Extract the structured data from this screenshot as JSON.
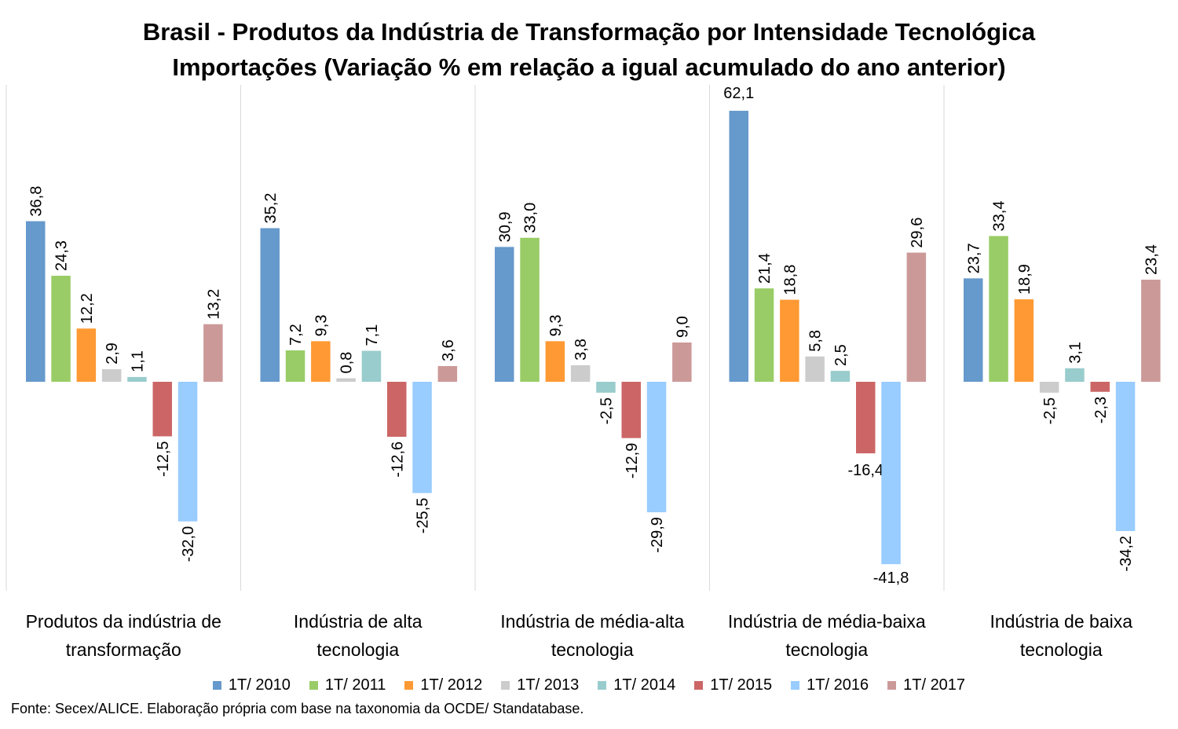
{
  "chart_data": {
    "type": "bar",
    "title": "Brasil - Produtos da Indústria de Transformação por Intensidade Tecnológica",
    "subtitle": "Importações (Variação % em relação a igual acumulado do ano anterior)",
    "categories": [
      "Produtos da indústria de transformação",
      "Indústria de alta tecnologia",
      "Indústria de média-alta tecnologia",
      "Indústria de média-baixa tecnologia",
      "Indústria de baixa tecnologia"
    ],
    "category_lines": [
      [
        "Produtos da indústria de",
        "transformação"
      ],
      [
        "Indústria de alta",
        "tecnologia"
      ],
      [
        "Indústria de média-alta",
        "tecnologia"
      ],
      [
        "Indústria de média-baixa",
        "tecnologia"
      ],
      [
        "Indústria de baixa",
        "tecnologia"
      ]
    ],
    "series": [
      {
        "name": "1T/ 2010",
        "color": "#6699CC",
        "values": [
          36.8,
          35.2,
          30.9,
          62.1,
          23.7
        ],
        "labels": [
          "36,8",
          "35,2",
          "30,9",
          "62,1",
          "23,7"
        ]
      },
      {
        "name": "1T/ 2011",
        "color": "#99CC66",
        "values": [
          24.3,
          7.2,
          33.0,
          21.4,
          33.4
        ],
        "labels": [
          "24,3",
          "7,2",
          "33,0",
          "21,4",
          "33,4"
        ]
      },
      {
        "name": "1T/ 2012",
        "color": "#FF9933",
        "values": [
          12.2,
          9.3,
          9.3,
          18.8,
          18.9
        ],
        "labels": [
          "12,2",
          "9,3",
          "9,3",
          "18,8",
          "18,9"
        ]
      },
      {
        "name": "1T/ 2013",
        "color": "#CCCCCC",
        "values": [
          2.9,
          0.8,
          3.8,
          5.8,
          -2.5
        ],
        "labels": [
          "2,9",
          "0,8",
          "3,8",
          "5,8",
          "-2,5"
        ]
      },
      {
        "name": "1T/ 2014",
        "color": "#99CCCC",
        "values": [
          1.1,
          7.1,
          -2.5,
          2.5,
          3.1
        ],
        "labels": [
          "1,1",
          "7,1",
          "-2,5",
          "2,5",
          "3,1"
        ]
      },
      {
        "name": "1T/ 2015",
        "color": "#CC6666",
        "values": [
          -12.5,
          -12.6,
          -12.9,
          -16.4,
          -2.3
        ],
        "labels": [
          "-12,5",
          "-12,6",
          "-12,9",
          "-16,4",
          "-2,3"
        ]
      },
      {
        "name": "1T/ 2016",
        "color": "#99CCFF",
        "values": [
          -32.0,
          -25.5,
          -29.9,
          -41.8,
          -34.2
        ],
        "labels": [
          "-32,0",
          "-25,5",
          "-29,9",
          "-41,8",
          "-34,2"
        ]
      },
      {
        "name": "1T/ 2017",
        "color": "#CC9999",
        "values": [
          13.2,
          3.6,
          9.0,
          29.6,
          23.4
        ],
        "labels": [
          "13,2",
          "3,6",
          "9,0",
          "29,6",
          "23,4"
        ]
      }
    ],
    "legend": "bottom",
    "grid": false,
    "source": "Fonte: Secex/ALICE. Elaboração própria com base na taxonomia da OCDE/ Standatabase."
  }
}
